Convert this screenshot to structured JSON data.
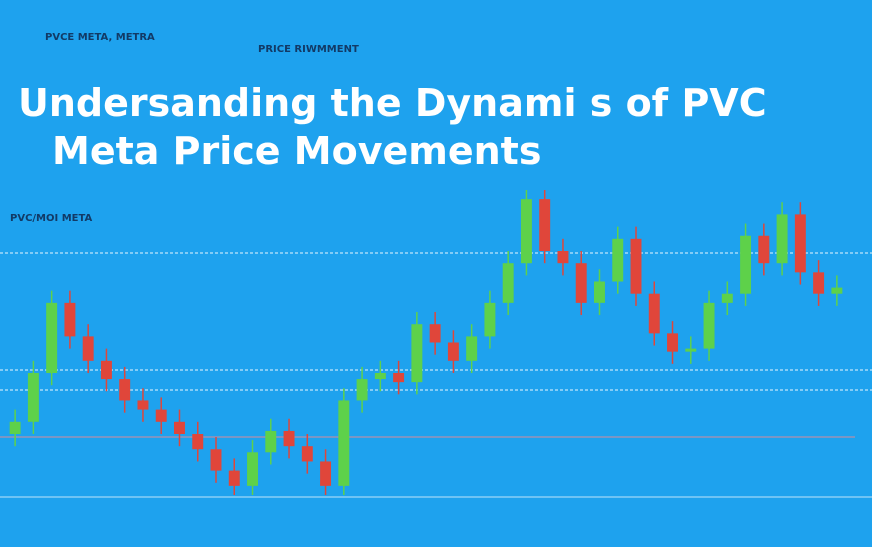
{
  "header": {
    "tag": "PVCE META, METRA",
    "subtag": "PRICE RIWMMENT"
  },
  "title": {
    "line1": "Undersanding the Dynami s of PVC",
    "line2": "Meta Price Movements"
  },
  "chart_data": {
    "type": "candlestick",
    "label": "PVC/MOI META",
    "up_color": "#5ed14a",
    "down_color": "#e0463a",
    "ylim": [
      0,
      100
    ],
    "open": [
      20,
      24,
      40,
      63,
      52,
      44,
      38,
      31,
      28,
      24,
      20,
      15,
      8,
      3,
      14,
      21,
      16,
      11,
      3,
      31,
      38,
      40,
      37,
      56,
      50,
      44,
      52,
      63,
      76,
      97,
      80,
      76,
      63,
      70,
      84,
      66,
      53,
      47,
      48,
      63,
      66,
      85,
      76,
      92,
      73,
      66
    ],
    "close": [
      24,
      40,
      63,
      52,
      44,
      38,
      31,
      28,
      24,
      20,
      15,
      8,
      3,
      14,
      21,
      16,
      11,
      3,
      31,
      38,
      40,
      37,
      56,
      50,
      44,
      52,
      63,
      76,
      97,
      80,
      76,
      63,
      70,
      84,
      66,
      53,
      47,
      48,
      63,
      66,
      85,
      76,
      92,
      73,
      66,
      68
    ],
    "high": [
      28,
      44,
      67,
      67,
      56,
      48,
      42,
      35,
      32,
      28,
      24,
      19,
      12,
      18,
      25,
      25,
      20,
      15,
      35,
      42,
      44,
      44,
      60,
      60,
      54,
      56,
      67,
      80,
      100,
      100,
      84,
      80,
      74,
      88,
      88,
      70,
      57,
      52,
      67,
      70,
      89,
      89,
      96,
      96,
      77,
      72
    ],
    "low": [
      16,
      20,
      36,
      48,
      40,
      34,
      27,
      24,
      20,
      16,
      11,
      4,
      0,
      0,
      10,
      12,
      7,
      0,
      0,
      27,
      34,
      33,
      33,
      46,
      40,
      40,
      48,
      59,
      72,
      76,
      72,
      59,
      59,
      66,
      62,
      49,
      43,
      43,
      44,
      59,
      62,
      72,
      72,
      69,
      62,
      62
    ]
  }
}
